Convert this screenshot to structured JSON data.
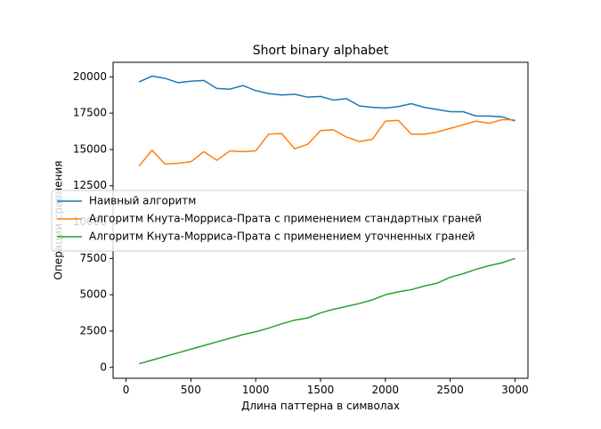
{
  "chart_data": {
    "type": "line",
    "title": "Short binary alphabet",
    "xlabel": "Длина паттерна в символах",
    "ylabel": "Операции сравнения",
    "xlim": [
      -100,
      3100
    ],
    "ylim": [
      -750,
      21000
    ],
    "xticks": [
      0,
      500,
      1000,
      1500,
      2000,
      2500,
      3000
    ],
    "yticks": [
      0,
      2500,
      5000,
      7500,
      10000,
      12500,
      15000,
      17500,
      20000
    ],
    "grid": false,
    "legend_position": "center-left",
    "x": [
      100,
      200,
      300,
      400,
      500,
      600,
      700,
      800,
      900,
      1000,
      1100,
      1200,
      1300,
      1400,
      1500,
      1600,
      1700,
      1800,
      1900,
      2000,
      2100,
      2200,
      2300,
      2400,
      2500,
      2600,
      2700,
      2800,
      2900,
      3000
    ],
    "series": [
      {
        "name": "Наивный алгоритм",
        "color": "#1f77b4",
        "values": [
          19650,
          20050,
          19900,
          19600,
          19700,
          19750,
          19200,
          19150,
          19400,
          19050,
          18850,
          18750,
          18800,
          18600,
          18650,
          18400,
          18500,
          18000,
          17900,
          17850,
          17950,
          18150,
          17900,
          17750,
          17600,
          17600,
          17300,
          17300,
          17250,
          16950
        ]
      },
      {
        "name": "Алгоритм Кнута-Морриса-Прата с применением стандартных граней",
        "color": "#ff7f0e",
        "values": [
          13850,
          14950,
          14000,
          14050,
          14150,
          14850,
          14250,
          14900,
          14850,
          14900,
          16050,
          16100,
          15050,
          15350,
          16300,
          16350,
          15850,
          15550,
          15700,
          16950,
          17000,
          16050,
          16050,
          16200,
          16450,
          16700,
          16950,
          16800,
          17050,
          17050
        ]
      },
      {
        "name": "Алгоритм Кнута-Морриса-Прата с применением уточненных граней",
        "color": "#2ca02c",
        "values": [
          250,
          500,
          750,
          1000,
          1250,
          1500,
          1750,
          2000,
          2250,
          2450,
          2700,
          3000,
          3250,
          3400,
          3750,
          4000,
          4200,
          4400,
          4650,
          5000,
          5200,
          5350,
          5600,
          5800,
          6200,
          6450,
          6750,
          7000,
          7200,
          7500
        ]
      }
    ]
  }
}
